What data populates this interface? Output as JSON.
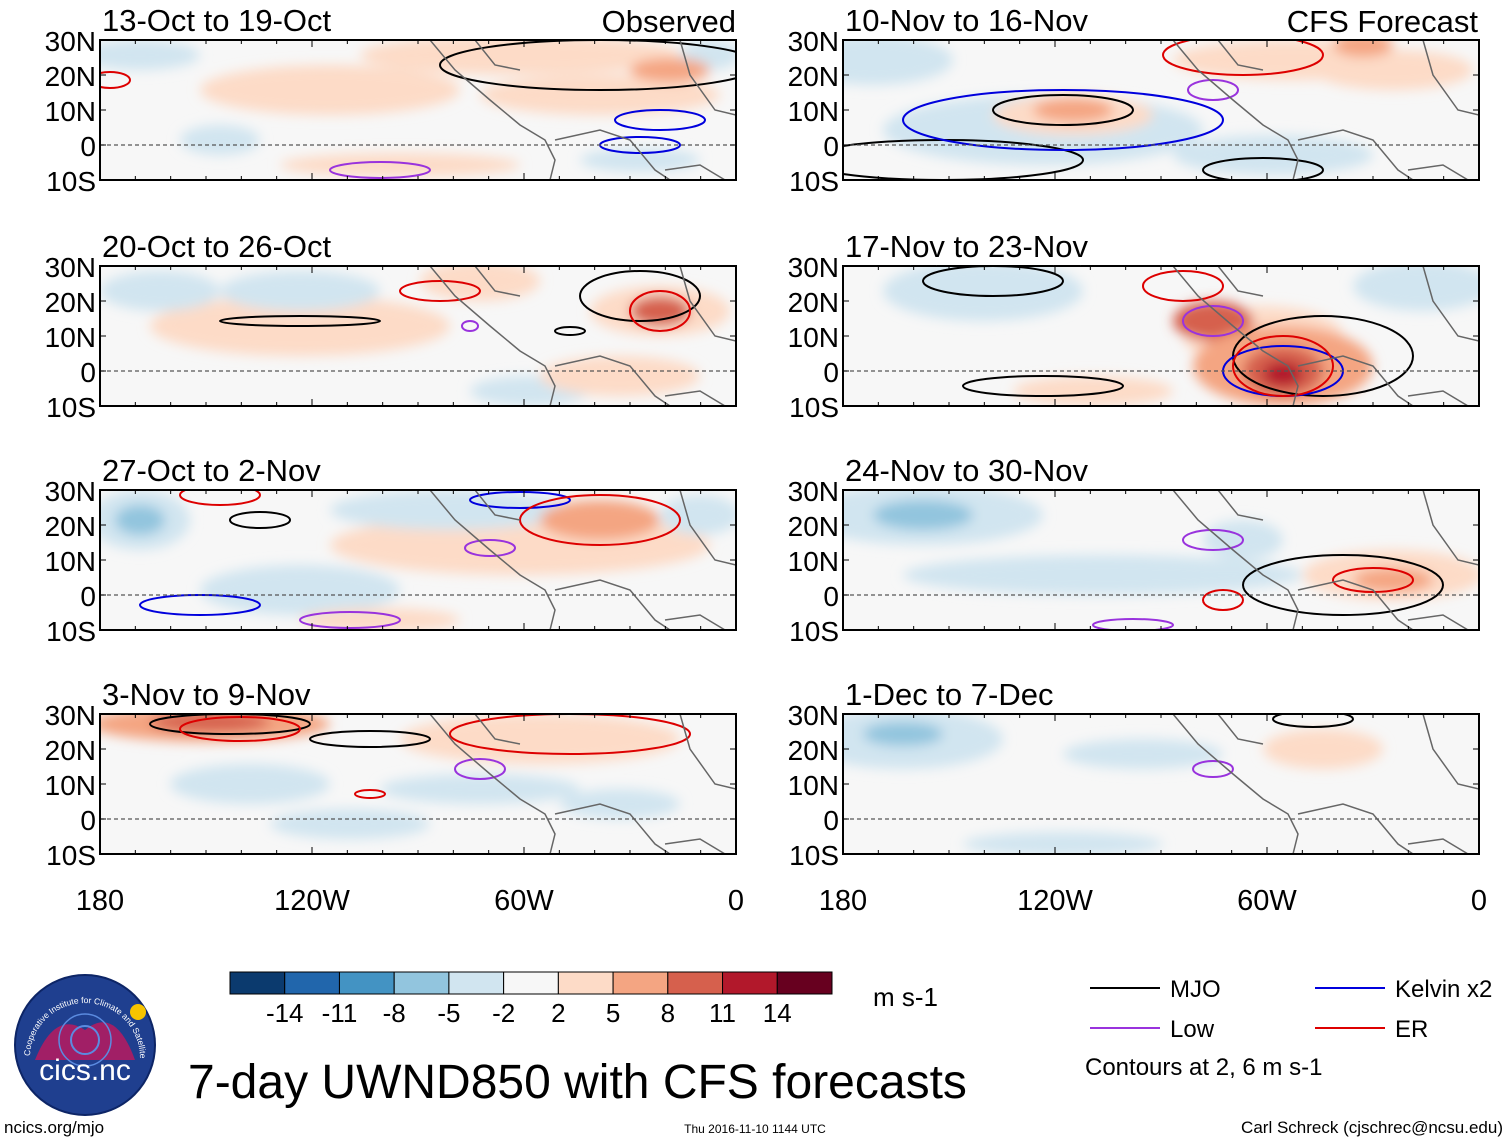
{
  "chart_data": {
    "type": "heatmap",
    "title": "7-day UWND850 with CFS forecasts",
    "variable": "850 hPa zonal wind anomaly",
    "units": "m s-1",
    "lon_ticks": [
      "180",
      "120W",
      "60W",
      "0"
    ],
    "lat_ticks": [
      "30N",
      "20N",
      "10N",
      "0",
      "10S"
    ],
    "lon_range": [
      -180,
      0
    ],
    "lat_range": [
      -10,
      30
    ],
    "color_levels": [
      "-14",
      "-11",
      "-8",
      "-5",
      "-2",
      "2",
      "5",
      "8",
      "11",
      "14"
    ],
    "color_scale": [
      "#0b3a6e",
      "#2166ac",
      "#4393c3",
      "#92c5de",
      "#d1e5f0",
      "#f7f7f7",
      "#fddbc7",
      "#f4a582",
      "#d6604d",
      "#b2182b",
      "#67001f"
    ],
    "observed_label": "Observed",
    "forecast_label": "CFS Forecast",
    "panels": [
      {
        "period": "13-Oct to 19-Oct",
        "source": "observed"
      },
      {
        "period": "20-Oct to 26-Oct",
        "source": "observed"
      },
      {
        "period": "27-Oct to 2-Nov",
        "source": "observed"
      },
      {
        "period": "3-Nov to 9-Nov",
        "source": "observed"
      },
      {
        "period": "10-Nov to 16-Nov",
        "source": "forecast"
      },
      {
        "period": "17-Nov to 23-Nov",
        "source": "forecast"
      },
      {
        "period": "24-Nov to 30-Nov",
        "source": "forecast"
      },
      {
        "period": "1-Dec to 7-Dec",
        "source": "forecast"
      }
    ],
    "legend": [
      {
        "label": "MJO",
        "color": "#000000"
      },
      {
        "label": "Kelvin x2",
        "color": "#0000dd"
      },
      {
        "label": "Low",
        "color": "#9933dd"
      },
      {
        "label": "ER",
        "color": "#dd0000"
      }
    ],
    "contour_note": "Contours at 2, 6 m s-1"
  },
  "footer": {
    "site": "ncics.org/mjo",
    "timestamp": "Thu 2016-11-10 1144 UTC",
    "author": "Carl Schreck (cjschrec@ncsu.edu)",
    "logo_text": "cics.nc",
    "logo_ring_text": "Cooperative Institute for Climate and Satellites"
  }
}
